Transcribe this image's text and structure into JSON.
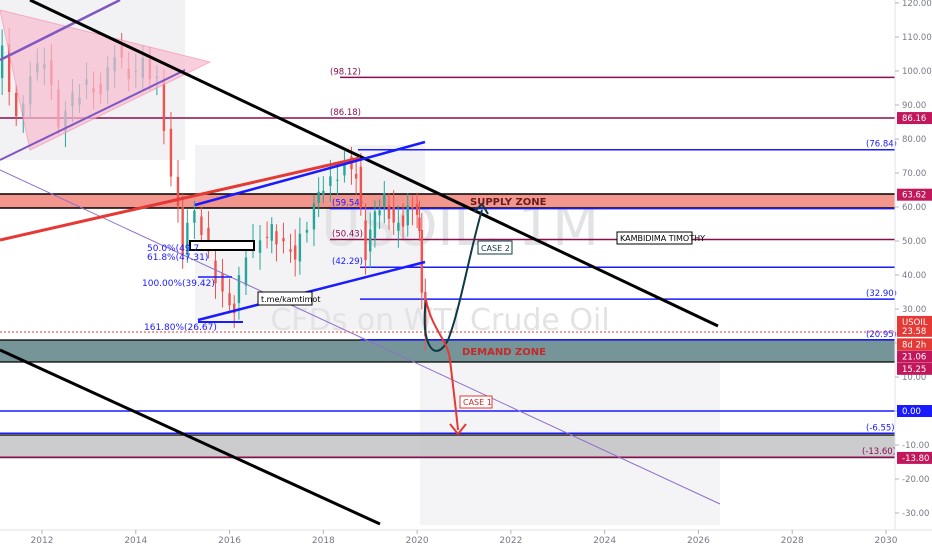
{
  "chart_data": {
    "type": "line",
    "symbol_watermark": "USOIL, 1M",
    "description_watermark": "CFDs on WTI Crude Oil",
    "x_ticks": [
      "2012",
      "2014",
      "2016",
      "2018",
      "2020",
      "2022",
      "2024",
      "2026",
      "2028",
      "2030"
    ],
    "y_ticks": [
      "120.00",
      "110.00",
      "100.00",
      "90.00",
      "80.00",
      "70.00",
      "60.00",
      "50.00",
      "40.00",
      "30.00",
      "20.00",
      "10.00",
      "0.00",
      "-10.00",
      "-20.00",
      "-30.00"
    ],
    "ylim": [
      -32,
      122
    ],
    "annotations": {
      "supply_zone": "SUPPLY ZONE",
      "demand_zone": "DEMAND ZONE",
      "case_1": "CASE 1",
      "case_2": "CASE 2",
      "author": "KAMBIDIMA TIMOTHY",
      "link": "t.me/kamtimot"
    },
    "levels": [
      {
        "label": "(98.12)",
        "value": 98.12,
        "color": "#880e4f"
      },
      {
        "label": "(86.18)",
        "value": 86.18,
        "color": "#880e4f"
      },
      {
        "label": "(76.84)",
        "value": 76.84,
        "color": "#1a1aff"
      },
      {
        "label": "(59.54)",
        "value": 59.54,
        "color": "#1a1aff"
      },
      {
        "label": "(50.43)",
        "value": 50.43,
        "color": "#880e4f"
      },
      {
        "label": "(42.29)",
        "value": 42.29,
        "color": "#1a1aff"
      },
      {
        "label": "(32.90)",
        "value": 32.9,
        "color": "#1a1aff"
      },
      {
        "label": "(20.95)",
        "value": 20.95,
        "color": "#1a1aff"
      },
      {
        "label": "(-6.55)",
        "value": -6.55,
        "color": "#1a1aff"
      },
      {
        "label": "(-13.60)",
        "value": -13.6,
        "color": "#880e4f"
      }
    ],
    "fib_labels": [
      "50.0%(49.7",
      "61.8%(47.31)",
      "100.00%(39.42)",
      "161.80%(26.67)"
    ],
    "price_badges": [
      {
        "label": "120.00",
        "value": 120,
        "color": "#ffffff",
        "text_color": "#787b86"
      },
      {
        "label": "86.16",
        "value": 86.16,
        "color": "#c2185b",
        "text_color": "#ffffff"
      },
      {
        "label": "63.62",
        "value": 63.62,
        "color": "#c2185b",
        "text_color": "#ffffff"
      },
      {
        "label": "USOIL",
        "value": 26.2,
        "color": "#e53935",
        "text_color": "#ffffff"
      },
      {
        "label": "23.58",
        "value": 23.58,
        "color": "#e53935",
        "text_color": "#ffffff"
      },
      {
        "label": "8d 2h",
        "value": 19.6,
        "color": "#e53935",
        "text_color": "#ffffff"
      },
      {
        "label": "21.06",
        "value": 16.0,
        "color": "#c2185b",
        "text_color": "#ffffff"
      },
      {
        "label": "15.25",
        "value": 12.4,
        "color": "#c2185b",
        "text_color": "#ffffff"
      },
      {
        "label": "0.00",
        "value": 0,
        "color": "#1a1aff",
        "text_color": "#ffffff"
      },
      {
        "label": "-13.80",
        "value": -13.8,
        "color": "#c2185b",
        "text_color": "#ffffff"
      }
    ],
    "colors": {
      "supply_zone": "#f28b82",
      "demand_zone": "#6e8f94",
      "bull_candle": "#26a69a",
      "bear_candle": "#ef5350",
      "channel": "#000000",
      "triangle": "#f48fb1",
      "red_trend": "#e53935",
      "fib_channel": "#1a1aff"
    }
  }
}
